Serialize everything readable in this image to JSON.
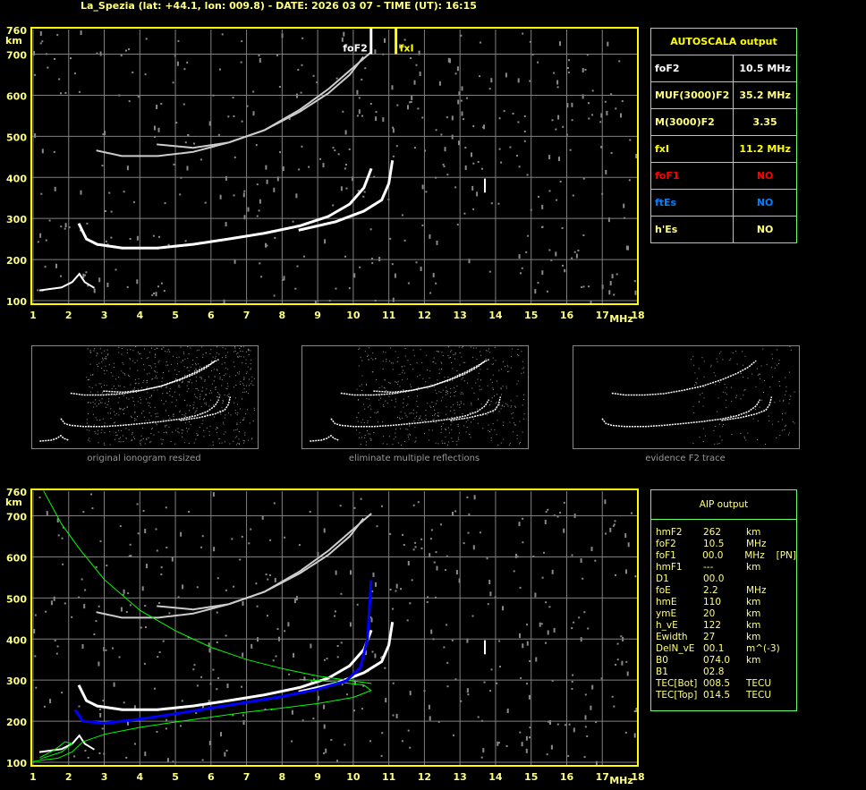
{
  "header": {
    "title": "La_Spezia (lat: +44.1, lon: 009.8) - DATE: 2026 03 07 - TIME (UT): 16:15"
  },
  "colors": {
    "frame": "#ffff00",
    "grid": "#808080",
    "table_border": "#66ff66",
    "echo": "#ffffff",
    "profile": "#0000ff",
    "model": "#00ff00",
    "foF1": "#ff0000",
    "ftEs": "#0080ff"
  },
  "chart_data": [
    {
      "type": "scatter",
      "title": "",
      "xlabel": "MHz",
      "ylabel": "km",
      "xlim": [
        1,
        18
      ],
      "ylim": [
        100,
        760
      ],
      "x_ticks": [
        "1",
        "2",
        "3",
        "4",
        "5",
        "6",
        "7",
        "8",
        "9",
        "10",
        "11",
        "12",
        "13",
        "14",
        "15",
        "16",
        "17",
        "18"
      ],
      "y_ticks": [
        "100",
        "200",
        "300",
        "400",
        "500",
        "600",
        "700",
        "760"
      ],
      "grid": true,
      "markers": [
        {
          "label": "foF2",
          "x": 10.5,
          "color": "#ffffff"
        },
        {
          "label": "fxI",
          "x": 11.2,
          "color": "#ffff00"
        }
      ],
      "traces": {
        "F2_o": [
          [
            2.3,
            285
          ],
          [
            2.5,
            250
          ],
          [
            2.8,
            237
          ],
          [
            3.5,
            228
          ],
          [
            4.5,
            228
          ],
          [
            5.5,
            237
          ],
          [
            6.5,
            250
          ],
          [
            7.5,
            264
          ],
          [
            8.5,
            282
          ],
          [
            9.3,
            305
          ],
          [
            9.9,
            335
          ],
          [
            10.3,
            375
          ],
          [
            10.5,
            420
          ]
        ],
        "F2_x": [
          [
            8.5,
            272
          ],
          [
            9.5,
            292
          ],
          [
            10.3,
            318
          ],
          [
            10.8,
            345
          ],
          [
            11.0,
            385
          ],
          [
            11.1,
            440
          ]
        ],
        "F2_2hop_o": [
          [
            2.8,
            465
          ],
          [
            3.5,
            452
          ],
          [
            4.5,
            452
          ],
          [
            5.5,
            462
          ],
          [
            6.5,
            485
          ],
          [
            7.5,
            515
          ],
          [
            8.5,
            560
          ],
          [
            9.3,
            605
          ],
          [
            9.9,
            650
          ],
          [
            10.3,
            695
          ]
        ],
        "F2_2hop_x": [
          [
            4.5,
            480
          ],
          [
            5.5,
            472
          ],
          [
            6.5,
            485
          ],
          [
            7.5,
            515
          ],
          [
            8.5,
            565
          ],
          [
            9.3,
            615
          ],
          [
            9.9,
            660
          ],
          [
            10.5,
            705
          ]
        ],
        "E": [
          [
            1.2,
            125
          ],
          [
            1.8,
            132
          ],
          [
            2.1,
            145
          ],
          [
            2.3,
            165
          ],
          [
            2.45,
            145
          ],
          [
            2.7,
            132
          ]
        ],
        "spur": [
          [
            13.7,
            365
          ],
          [
            13.7,
            395
          ]
        ]
      }
    },
    {
      "type": "line",
      "title": "",
      "xlabel": "MHz",
      "ylabel": "km",
      "xlim": [
        1,
        18
      ],
      "ylim": [
        100,
        760
      ],
      "x_ticks": [
        "1",
        "2",
        "3",
        "4",
        "5",
        "6",
        "7",
        "8",
        "9",
        "10",
        "11",
        "12",
        "13",
        "14",
        "15",
        "16",
        "17",
        "18"
      ],
      "y_ticks": [
        "100",
        "200",
        "300",
        "400",
        "500",
        "600",
        "700",
        "760"
      ],
      "grid": true,
      "profile": [
        [
          2.2,
          225
        ],
        [
          2.4,
          200
        ],
        [
          3,
          195
        ],
        [
          4,
          205
        ],
        [
          5,
          218
        ],
        [
          6,
          232
        ],
        [
          7,
          246
        ],
        [
          8,
          260
        ],
        [
          9,
          278
        ],
        [
          9.8,
          298
        ],
        [
          10.2,
          330
        ],
        [
          10.4,
          400
        ],
        [
          10.5,
          540
        ]
      ],
      "model_upper": [
        [
          1.3,
          760
        ],
        [
          1.8,
          680
        ],
        [
          2.3,
          620
        ],
        [
          3,
          545
        ],
        [
          4,
          470
        ],
        [
          5,
          420
        ],
        [
          6,
          380
        ],
        [
          7,
          350
        ],
        [
          8,
          328
        ],
        [
          9,
          310
        ],
        [
          10,
          298
        ],
        [
          10.5,
          292
        ]
      ],
      "model_lower": [
        [
          1,
          102
        ],
        [
          1.7,
          110
        ],
        [
          2.1,
          125
        ],
        [
          2.4,
          150
        ],
        [
          3,
          168
        ],
        [
          4,
          185
        ],
        [
          5,
          198
        ],
        [
          6,
          210
        ],
        [
          7,
          222
        ],
        [
          8,
          232
        ],
        [
          9,
          243
        ],
        [
          10,
          258
        ],
        [
          10.5,
          275
        ],
        [
          10.3,
          288
        ],
        [
          9.5,
          296
        ],
        [
          8.5,
          302
        ]
      ],
      "model_E": [
        [
          1.2,
          108
        ],
        [
          1.8,
          125
        ],
        [
          2.1,
          145
        ],
        [
          1.9,
          150
        ],
        [
          1.6,
          130
        ],
        [
          1.2,
          112
        ]
      ]
    }
  ],
  "thumbnails": [
    {
      "caption": "original ionogram resized"
    },
    {
      "caption": "eliminate multiple reflections"
    },
    {
      "caption": "evidence F2 trace"
    }
  ],
  "autoscala": {
    "title": "AUTOSCALA output",
    "rows": [
      {
        "label": "foF2",
        "value": "10.5 MHz",
        "color": "#ffffff"
      },
      {
        "label": "MUF(3000)F2",
        "value": "35.2 MHz",
        "color": "#ffff80"
      },
      {
        "label": "M(3000)F2",
        "value": "3.35",
        "color": "#ffff80"
      },
      {
        "label": "fxI",
        "value": "11.2 MHz",
        "color": "#ffff00"
      },
      {
        "label": "foF1",
        "value": "NO",
        "color": "#ff0000"
      },
      {
        "label": "ftEs",
        "value": "NO",
        "color": "#0080ff"
      },
      {
        "label": "h'Es",
        "value": "NO",
        "color": "#ffff80"
      }
    ]
  },
  "aip": {
    "title": "AIP output",
    "rows": [
      [
        "hmF2",
        "262",
        "km",
        ""
      ],
      [
        "foF2",
        "10.5",
        "MHz",
        ""
      ],
      [
        "foF1",
        "00.0",
        "MHz",
        "[PN]"
      ],
      [
        "hmF1",
        "---",
        "km",
        ""
      ],
      [
        "D1",
        "00.0",
        "",
        ""
      ],
      [
        "foE",
        "2.2",
        "MHz",
        ""
      ],
      [
        "hmE",
        "110",
        "km",
        ""
      ],
      [
        "ymE",
        "20",
        "km",
        ""
      ],
      [
        "h_vE",
        "122",
        "km",
        ""
      ],
      [
        "Ewidth",
        "27",
        "km",
        ""
      ],
      [
        "DelN_vE",
        "00.1",
        "m^(-3)",
        ""
      ],
      [
        "B0",
        "074.0",
        "km",
        ""
      ],
      [
        "B1",
        "02.8",
        "",
        ""
      ],
      [
        "TEC[Bot]",
        "008.5",
        "TECU",
        ""
      ],
      [
        "TEC[Top]",
        "014.5",
        "TECU",
        ""
      ]
    ]
  }
}
